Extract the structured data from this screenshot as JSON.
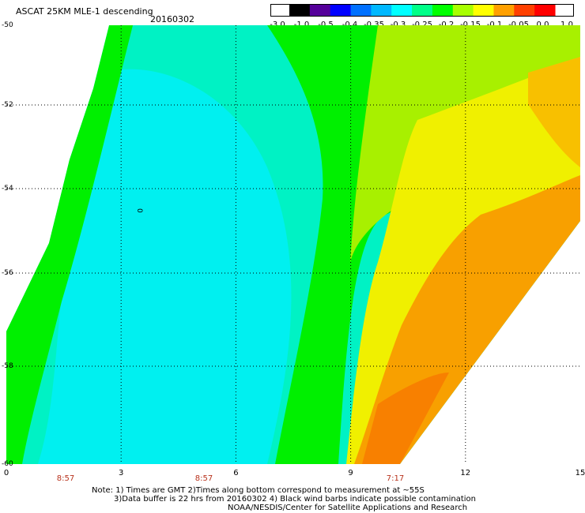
{
  "header": {
    "title": "ASCAT 25KM MLE-1 descending",
    "date": "20160302"
  },
  "colorbar": {
    "labels": [
      "-3.0",
      "-1.0",
      "-0.5",
      "-0.4",
      "-0.35",
      "-0.3",
      "-0.25",
      "-0.2",
      "-0.15",
      "-0.1",
      "-0.05",
      "0.0",
      "1.0"
    ],
    "colors": [
      "#000000",
      "#55009a",
      "#0000ff",
      "#0070ff",
      "#00b8ff",
      "#00ffff",
      "#00ff88",
      "#00ff00",
      "#a8ff00",
      "#ffff00",
      "#ffa000",
      "#ff4000",
      "#ff0000"
    ]
  },
  "map": {
    "lat_labels": [
      "-50",
      "-52",
      "-54",
      "-56",
      "-58",
      "-60"
    ],
    "lon_labels": [
      "0",
      "3",
      "6",
      "9",
      "12",
      "15"
    ],
    "times": [
      "8:57",
      "8:57",
      "7:17"
    ],
    "contour_label": "0",
    "colors": {
      "cyan": "#00f0f0",
      "cyan_green": "#00f4a0",
      "green": "#00f000",
      "yellow_green": "#a8f000",
      "yellow": "#f0f000",
      "orange_yellow": "#f8c000",
      "orange": "#f8a000",
      "dark_orange": "#f88000"
    }
  },
  "notes": {
    "line1": "Note: 1) Times are GMT 2)Times along bottom correspond to measurement at ~55S",
    "line2": "3)Data buffer is 22 hrs from 20160302 4) Black wind barbs indicate possible contamination",
    "line3": "NOAA/NESDIS/Center for Satellite Applications and Research"
  }
}
